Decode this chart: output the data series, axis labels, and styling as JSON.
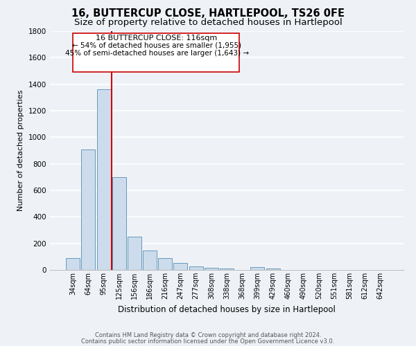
{
  "title": "16, BUTTERCUP CLOSE, HARTLEPOOL, TS26 0FE",
  "subtitle": "Size of property relative to detached houses in Hartlepool",
  "xlabel": "Distribution of detached houses by size in Hartlepool",
  "ylabel": "Number of detached properties",
  "footer_line1": "Contains HM Land Registry data © Crown copyright and database right 2024.",
  "footer_line2": "Contains public sector information licensed under the Open Government Licence v3.0.",
  "bar_labels": [
    "34sqm",
    "64sqm",
    "95sqm",
    "125sqm",
    "156sqm",
    "186sqm",
    "216sqm",
    "247sqm",
    "277sqm",
    "308sqm",
    "338sqm",
    "368sqm",
    "399sqm",
    "429sqm",
    "460sqm",
    "490sqm",
    "520sqm",
    "551sqm",
    "581sqm",
    "612sqm",
    "642sqm"
  ],
  "bar_values": [
    90,
    910,
    1360,
    700,
    250,
    145,
    90,
    50,
    25,
    15,
    10,
    0,
    20,
    10,
    0,
    0,
    0,
    0,
    0,
    0,
    0
  ],
  "bar_color": "#ccdcec",
  "bar_edge_color": "#6699bb",
  "vline_color": "#cc0000",
  "annotation_title": "16 BUTTERCUP CLOSE: 116sqm",
  "annotation_line1": "← 54% of detached houses are smaller (1,955)",
  "annotation_line2": "45% of semi-detached houses are larger (1,643) →",
  "annotation_box_color": "#ffffff",
  "annotation_box_edge": "#cc0000",
  "ylim": [
    0,
    1800
  ],
  "yticks": [
    0,
    200,
    400,
    600,
    800,
    1000,
    1200,
    1400,
    1600,
    1800
  ],
  "bg_color": "#eef2f7",
  "grid_color": "#ffffff",
  "title_fontsize": 10.5,
  "subtitle_fontsize": 9.5
}
